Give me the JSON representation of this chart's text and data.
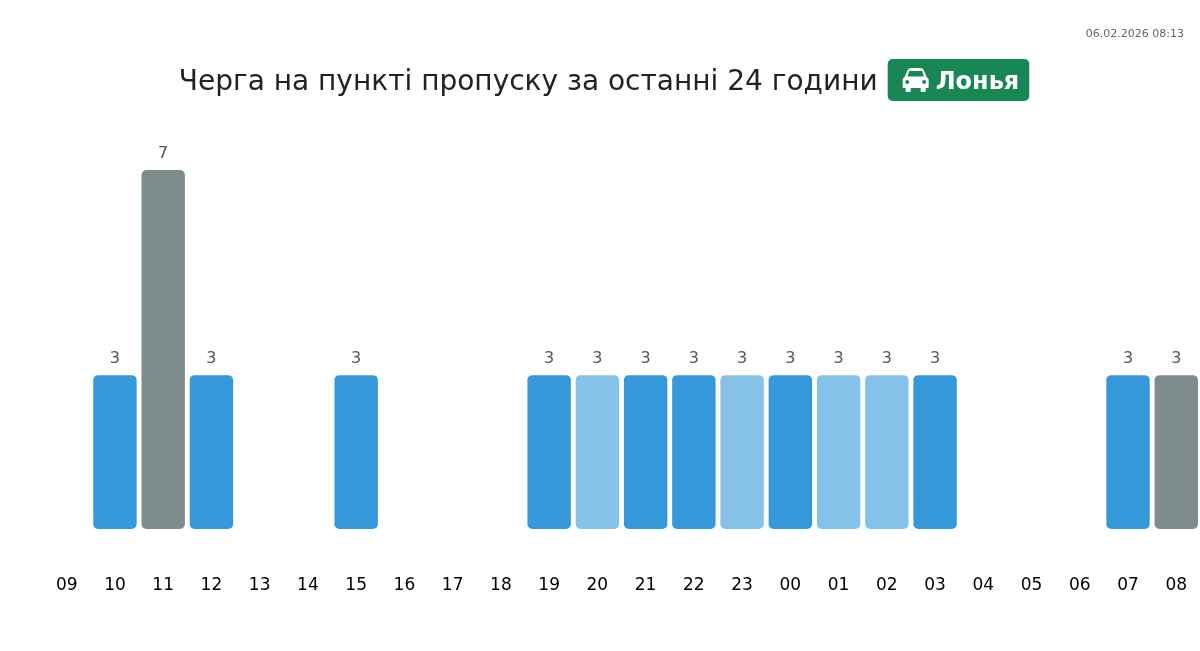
{
  "chart_data": {
    "type": "bar",
    "title": "Черга на пункті пропуску за останні 24 години",
    "subtitle": "Лонья",
    "annotations": [
      "06.02.2026 08:13"
    ],
    "categories": [
      "09",
      "10",
      "11",
      "12",
      "13",
      "14",
      "15",
      "16",
      "17",
      "18",
      "19",
      "20",
      "21",
      "22",
      "23",
      "00",
      "01",
      "02",
      "03",
      "04",
      "05",
      "06",
      "07",
      "08"
    ],
    "values": [
      null,
      3,
      7,
      3,
      null,
      null,
      3,
      null,
      null,
      null,
      3,
      3,
      3,
      3,
      3,
      3,
      3,
      3,
      3,
      null,
      null,
      null,
      3,
      3
    ],
    "colors": [
      null,
      "#3498db",
      "#7f8c8d",
      "#3498db",
      null,
      null,
      "#3498db",
      null,
      null,
      null,
      "#3498db",
      "#85c1e9",
      "#3498db",
      "#3498db",
      "#85c1e9",
      "#3498db",
      "#85c1e9",
      "#85c1e9",
      "#3498db",
      null,
      null,
      null,
      "#3498db",
      "#7f8c8d"
    ],
    "data_labels": true,
    "tick_labels": "x"
  }
}
